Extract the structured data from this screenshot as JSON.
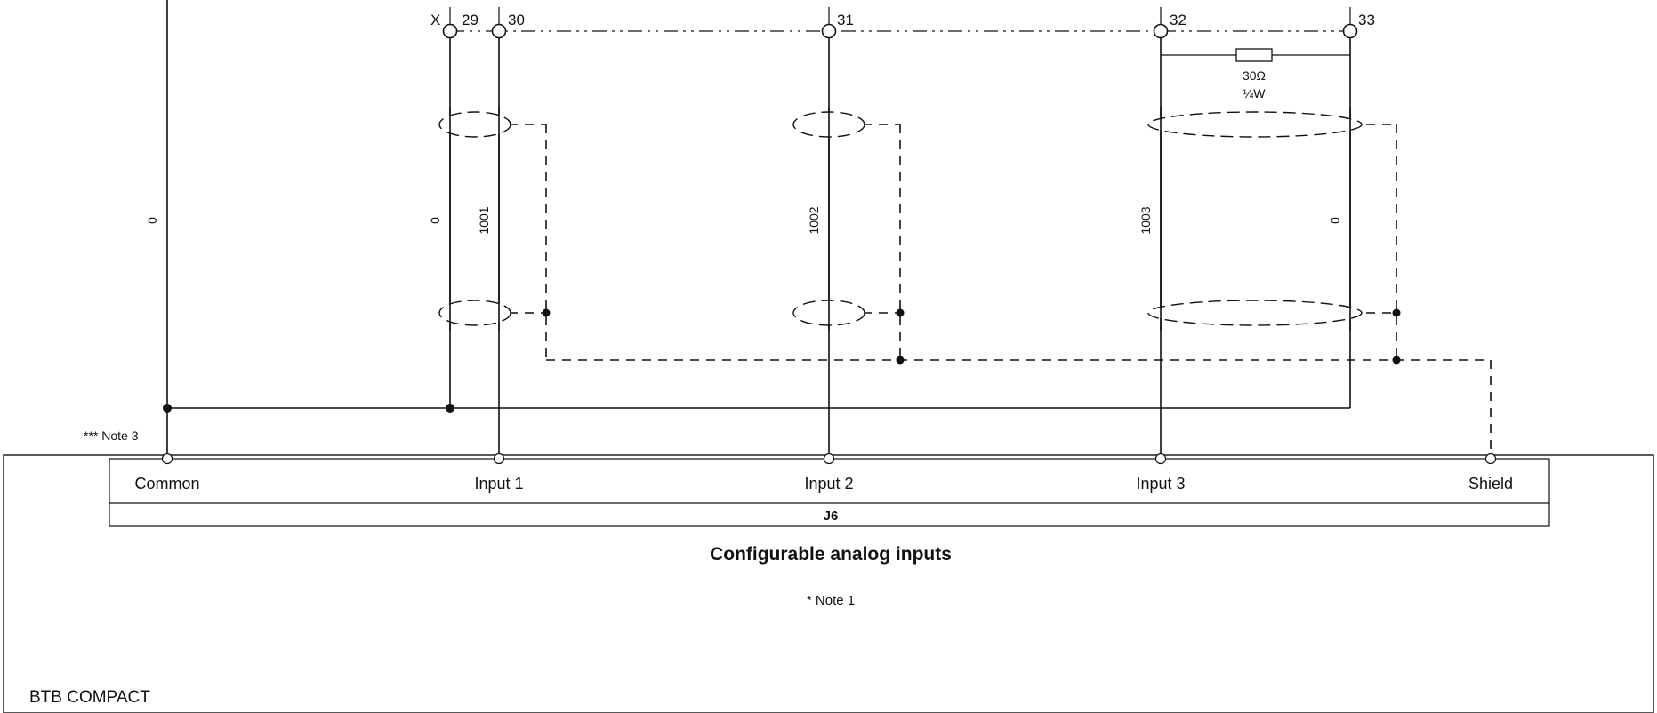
{
  "diagram": {
    "terminal_marker": "X",
    "terminals": [
      "29",
      "30",
      "31",
      "32",
      "33"
    ],
    "wire_labels": {
      "common": "0",
      "x29": "0",
      "input1": "1001",
      "input2": "1002",
      "input3": "1003",
      "x33": "0"
    },
    "resistor": {
      "value": "30Ω",
      "power": "¼W"
    },
    "note3": "*** Note 3",
    "module": {
      "pins": [
        "Common",
        "Input 1",
        "Input 2",
        "Input 3",
        "Shield"
      ],
      "connector": "J6",
      "title": "Configurable analog inputs",
      "note1": "* Note 1",
      "device": "BTB COMPACT"
    }
  }
}
